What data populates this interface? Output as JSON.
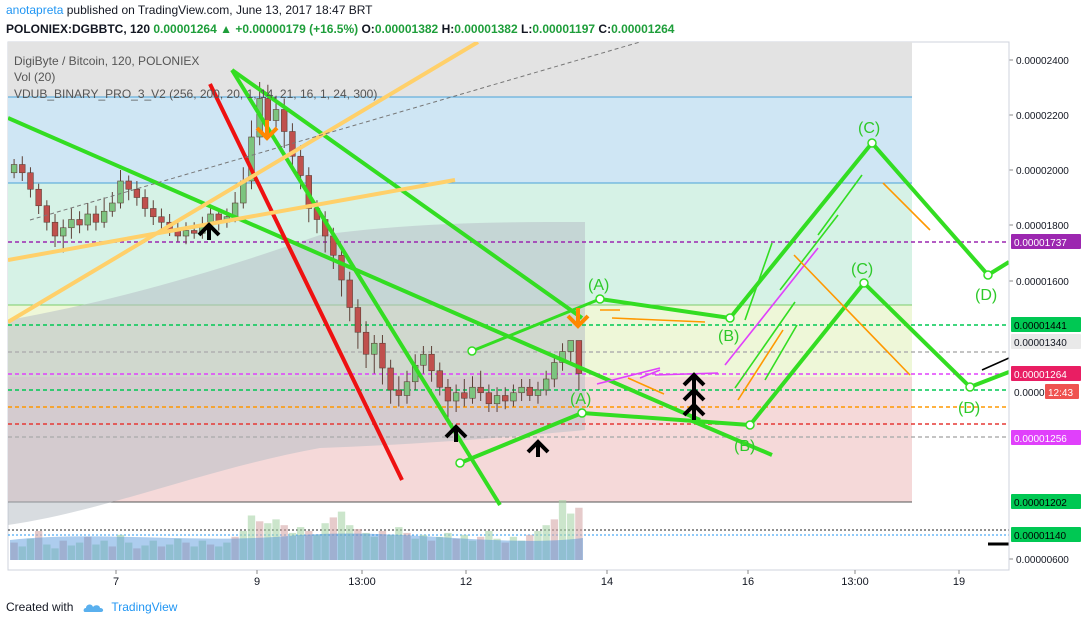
{
  "header": {
    "user": "anotapreta",
    "published_text": "published on TradingView.com, June 13, 2017 18:47 BRT",
    "symbol_line": "POLONIEX:DGBBTC, 120",
    "last": "0.00001264",
    "change": "+0.00000179 (+16.5%)",
    "o_label": "O:",
    "o": "0.00001382",
    "h_label": "H:",
    "h": "0.00001382",
    "l_label": "L:",
    "l": "0.00001197",
    "c_label": "C:",
    "c": "0.00001264"
  },
  "legend": {
    "symbol": "DigiByte / Bitcoin, 120, POLONIEX",
    "volume": "Vol (20)",
    "indicator": "VDUB_BINARY_PRO_3_V2 (256, 200, 20, 1, 14, 21, 16, 1, 24, 300)"
  },
  "footer": {
    "created_with": "Created with",
    "brand": "TradingView"
  },
  "chart_data": {
    "type": "candlestick",
    "symbol": "DGBBTC",
    "exchange": "POLONIEX",
    "interval": "120",
    "y_axis": {
      "ylim": [
        5.6e-06,
        2.5e-05
      ],
      "ticks": [
        "0.00002400",
        "0.00002200",
        "0.00002000",
        "0.00001800",
        "0.00001600",
        "0.00000600"
      ]
    },
    "x_axis": {
      "ticks": [
        "7",
        "9",
        "13:00",
        "12",
        "14",
        "16",
        "13:00",
        "19"
      ]
    },
    "price_labels": [
      {
        "label": "0.00001737",
        "color": "#9c27b0",
        "text_color": "#ffffff"
      },
      {
        "label": "0.00001441",
        "color": "#00c853",
        "text_color": "#000000"
      },
      {
        "label": "0.00001340",
        "color": "#e9e9e9",
        "text_color": "#131722"
      },
      {
        "label": "0.00001264",
        "color": "#e91e63",
        "text_color": "#ffffff"
      },
      {
        "label": "0.0000",
        "color": "#ffffff",
        "text_color": "#131722"
      },
      {
        "label": "12:43",
        "color": "#ef5350",
        "text_color": "#ffffff"
      },
      {
        "label": "0.00001256",
        "color": "#e040fb",
        "text_color": "#ffffff"
      },
      {
        "label": "0.00001202",
        "color": "#00c853",
        "text_color": "#000000"
      },
      {
        "label": "0.00001140",
        "color": "#00c853",
        "text_color": "#000000"
      }
    ],
    "horizontal_levels": [
      {
        "value": 1.737e-05,
        "color": "#9c27b0",
        "style": "dashed"
      },
      {
        "value": 1.441e-05,
        "color": "#00c853",
        "style": "dashed"
      },
      {
        "value": 1.34e-05,
        "color": "#b0b0b0",
        "style": "dashed"
      },
      {
        "value": 1.264e-05,
        "color": "#e040fb",
        "style": "dashed"
      },
      {
        "value": 1.22e-05,
        "color": "#00c853",
        "style": "dashed"
      },
      {
        "value": 1.19e-05,
        "color": "#ff9800",
        "style": "dashed"
      },
      {
        "value": 1.16e-05,
        "color": "#e53935",
        "style": "dashed"
      },
      {
        "value": 1.14e-05,
        "color": "#b0b0b0",
        "style": "dashed"
      }
    ],
    "wave_labels": [
      "(A)",
      "(B)",
      "(C)",
      "(D)",
      "(A)",
      "(B)",
      "(C)",
      "(D)",
      "(B)"
    ],
    "candles": [
      [
        1.99e-05,
        2.02e-05,
        1.97e-05,
        2.04e-05
      ],
      [
        2.02e-05,
        1.99e-05,
        1.96e-05,
        2.05e-05
      ],
      [
        1.99e-05,
        1.93e-05,
        1.9e-05,
        2.01e-05
      ],
      [
        1.93e-05,
        1.87e-05,
        1.84e-05,
        1.95e-05
      ],
      [
        1.87e-05,
        1.81e-05,
        1.78e-05,
        1.89e-05
      ],
      [
        1.81e-05,
        1.76e-05,
        1.72e-05,
        1.84e-05
      ],
      [
        1.76e-05,
        1.79e-05,
        1.7e-05,
        1.82e-05
      ],
      [
        1.79e-05,
        1.82e-05,
        1.75e-05,
        1.86e-05
      ],
      [
        1.82e-05,
        1.8e-05,
        1.77e-05,
        1.85e-05
      ],
      [
        1.8e-05,
        1.84e-05,
        1.78e-05,
        1.88e-05
      ],
      [
        1.84e-05,
        1.81e-05,
        1.78e-05,
        1.87e-05
      ],
      [
        1.81e-05,
        1.85e-05,
        1.79e-05,
        1.9e-05
      ],
      [
        1.85e-05,
        1.88e-05,
        1.83e-05,
        1.92e-05
      ],
      [
        1.88e-05,
        1.96e-05,
        1.86e-05,
        2e-05
      ],
      [
        1.96e-05,
        1.93e-05,
        1.89e-05,
        1.98e-05
      ],
      [
        1.93e-05,
        1.9e-05,
        1.87e-05,
        1.96e-05
      ],
      [
        1.9e-05,
        1.86e-05,
        1.83e-05,
        1.93e-05
      ],
      [
        1.86e-05,
        1.83e-05,
        1.8e-05,
        1.89e-05
      ],
      [
        1.83e-05,
        1.81e-05,
        1.78e-05,
        1.86e-05
      ],
      [
        1.81e-05,
        1.78e-05,
        1.76e-05,
        1.84e-05
      ],
      [
        1.78e-05,
        1.76e-05,
        1.74e-05,
        1.81e-05
      ],
      [
        1.76e-05,
        1.78e-05,
        1.73e-05,
        1.81e-05
      ],
      [
        1.78e-05,
        1.77e-05,
        1.75e-05,
        1.81e-05
      ],
      [
        1.77e-05,
        1.8e-05,
        1.75e-05,
        1.83e-05
      ],
      [
        1.8e-05,
        1.84e-05,
        1.78e-05,
        1.87e-05
      ],
      [
        1.84e-05,
        1.81e-05,
        1.78e-05,
        1.86e-05
      ],
      [
        1.81e-05,
        1.83e-05,
        1.79e-05,
        1.86e-05
      ],
      [
        1.83e-05,
        1.88e-05,
        1.81e-05,
        1.92e-05
      ],
      [
        1.88e-05,
        1.96e-05,
        1.86e-05,
        2.01e-05
      ],
      [
        1.96e-05,
        2.12e-05,
        1.93e-05,
        2.18e-05
      ],
      [
        2.12e-05,
        2.26e-05,
        2.09e-05,
        2.32e-05
      ],
      [
        2.26e-05,
        2.18e-05,
        2.13e-05,
        2.31e-05
      ],
      [
        2.18e-05,
        2.22e-05,
        2.14e-05,
        2.27e-05
      ],
      [
        2.22e-05,
        2.14e-05,
        2.08e-05,
        2.26e-05
      ],
      [
        2.14e-05,
        2.05e-05,
        2e-05,
        2.17e-05
      ],
      [
        2.05e-05,
        1.98e-05,
        1.93e-05,
        2.09e-05
      ],
      [
        1.98e-05,
        1.86e-05,
        1.81e-05,
        2.01e-05
      ],
      [
        1.86e-05,
        1.82e-05,
        1.77e-05,
        1.89e-05
      ],
      [
        1.82e-05,
        1.76e-05,
        1.7e-05,
        1.85e-05
      ],
      [
        1.76e-05,
        1.69e-05,
        1.64e-05,
        1.79e-05
      ],
      [
        1.69e-05,
        1.6e-05,
        1.54e-05,
        1.72e-05
      ],
      [
        1.6e-05,
        1.5e-05,
        1.45e-05,
        1.63e-05
      ],
      [
        1.5e-05,
        1.41e-05,
        1.35e-05,
        1.53e-05
      ],
      [
        1.41e-05,
        1.33e-05,
        1.28e-05,
        1.45e-05
      ],
      [
        1.33e-05,
        1.37e-05,
        1.26e-05,
        1.4e-05
      ],
      [
        1.37e-05,
        1.28e-05,
        1.22e-05,
        1.4e-05
      ],
      [
        1.28e-05,
        1.2e-05,
        1.15e-05,
        1.31e-05
      ],
      [
        1.2e-05,
        1.18e-05,
        1.14e-05,
        1.25e-05
      ],
      [
        1.18e-05,
        1.23e-05,
        1.15e-05,
        1.27e-05
      ],
      [
        1.23e-05,
        1.29e-05,
        1.2e-05,
        1.33e-05
      ],
      [
        1.29e-05,
        1.33e-05,
        1.26e-05,
        1.36e-05
      ],
      [
        1.33e-05,
        1.27e-05,
        1.23e-05,
        1.36e-05
      ],
      [
        1.27e-05,
        1.21e-05,
        1.18e-05,
        1.3e-05
      ],
      [
        1.21e-05,
        1.16e-05,
        1.1e-05,
        1.24e-05
      ],
      [
        1.16e-05,
        1.19e-05,
        1.12e-05,
        1.22e-05
      ],
      [
        1.19e-05,
        1.17e-05,
        1.14e-05,
        1.24e-05
      ],
      [
        1.17e-05,
        1.21e-05,
        1.15e-05,
        1.25e-05
      ],
      [
        1.21e-05,
        1.19e-05,
        1.16e-05,
        1.27e-05
      ],
      [
        1.19e-05,
        1.15e-05,
        1.12e-05,
        1.22e-05
      ],
      [
        1.15e-05,
        1.18e-05,
        1.12e-05,
        1.21e-05
      ],
      [
        1.18e-05,
        1.16e-05,
        1.13e-05,
        1.21e-05
      ],
      [
        1.16e-05,
        1.19e-05,
        1.14e-05,
        1.22e-05
      ],
      [
        1.19e-05,
        1.21e-05,
        1.16e-05,
        1.24e-05
      ],
      [
        1.21e-05,
        1.18e-05,
        1.16e-05,
        1.24e-05
      ],
      [
        1.18e-05,
        1.2e-05,
        1.15e-05,
        1.23e-05
      ],
      [
        1.2e-05,
        1.24e-05,
        1.18e-05,
        1.27e-05
      ],
      [
        1.24e-05,
        1.3e-05,
        1.21e-05,
        1.33e-05
      ],
      [
        1.3e-05,
        1.34e-05,
        1.27e-05,
        1.37e-05
      ],
      [
        1.34e-05,
        1.38e-05,
        1.3e-05,
        1.38e-05
      ],
      [
        1.38e-05,
        1.26e-05,
        1.2e-05,
        1.38e-05
      ]
    ],
    "volume": [
      18,
      14,
      22,
      30,
      16,
      12,
      20,
      15,
      18,
      24,
      16,
      20,
      14,
      26,
      18,
      12,
      15,
      20,
      14,
      16,
      22,
      18,
      14,
      20,
      16,
      14,
      18,
      24,
      30,
      46,
      40,
      38,
      42,
      36,
      28,
      34,
      30,
      26,
      38,
      44,
      50,
      36,
      32,
      28,
      24,
      30,
      26,
      34,
      28,
      22,
      26,
      20,
      24,
      28,
      22,
      26,
      20,
      24,
      30,
      22,
      18,
      24,
      20,
      26,
      30,
      36,
      42,
      62,
      48,
      54
    ]
  }
}
